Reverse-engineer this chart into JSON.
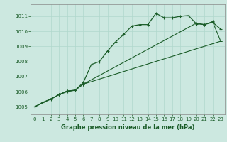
{
  "title": "Graphe pression niveau de la mer (hPa)",
  "bg_color": "#cce8e0",
  "grid_color": "#b0d8cc",
  "line_color": "#1a5c28",
  "spine_color": "#888888",
  "xlim": [
    -0.5,
    23.5
  ],
  "ylim": [
    1004.5,
    1011.8
  ],
  "yticks": [
    1005,
    1006,
    1007,
    1008,
    1009,
    1010,
    1011
  ],
  "xticks": [
    0,
    1,
    2,
    3,
    4,
    5,
    6,
    7,
    8,
    9,
    10,
    11,
    12,
    13,
    14,
    15,
    16,
    17,
    18,
    19,
    20,
    21,
    22,
    23
  ],
  "line1_x": [
    0,
    1,
    2,
    3,
    4,
    5,
    6,
    7,
    8,
    9,
    10,
    11,
    12,
    13,
    14,
    15,
    16,
    17,
    18,
    19,
    20,
    21,
    22,
    23
  ],
  "line1_y": [
    1005.0,
    1005.3,
    1005.5,
    1005.8,
    1006.0,
    1006.1,
    1006.6,
    1007.8,
    1008.0,
    1008.7,
    1009.3,
    1009.8,
    1010.35,
    1010.45,
    1010.45,
    1011.2,
    1010.9,
    1010.9,
    1011.0,
    1011.05,
    1010.5,
    1010.45,
    1010.6,
    1010.15
  ],
  "line2_x": [
    0,
    3,
    4,
    5,
    6,
    23
  ],
  "line2_y": [
    1005.0,
    1005.8,
    1006.05,
    1006.1,
    1006.5,
    1009.35
  ],
  "line3_x": [
    0,
    3,
    4,
    5,
    6,
    20,
    21,
    22,
    23
  ],
  "line3_y": [
    1005.0,
    1005.8,
    1006.05,
    1006.1,
    1006.5,
    1010.55,
    1010.45,
    1010.65,
    1009.35
  ],
  "xlabel_fontsize": 6.0,
  "tick_fontsize": 5.0,
  "figwidth": 3.2,
  "figheight": 2.0,
  "dpi": 100
}
